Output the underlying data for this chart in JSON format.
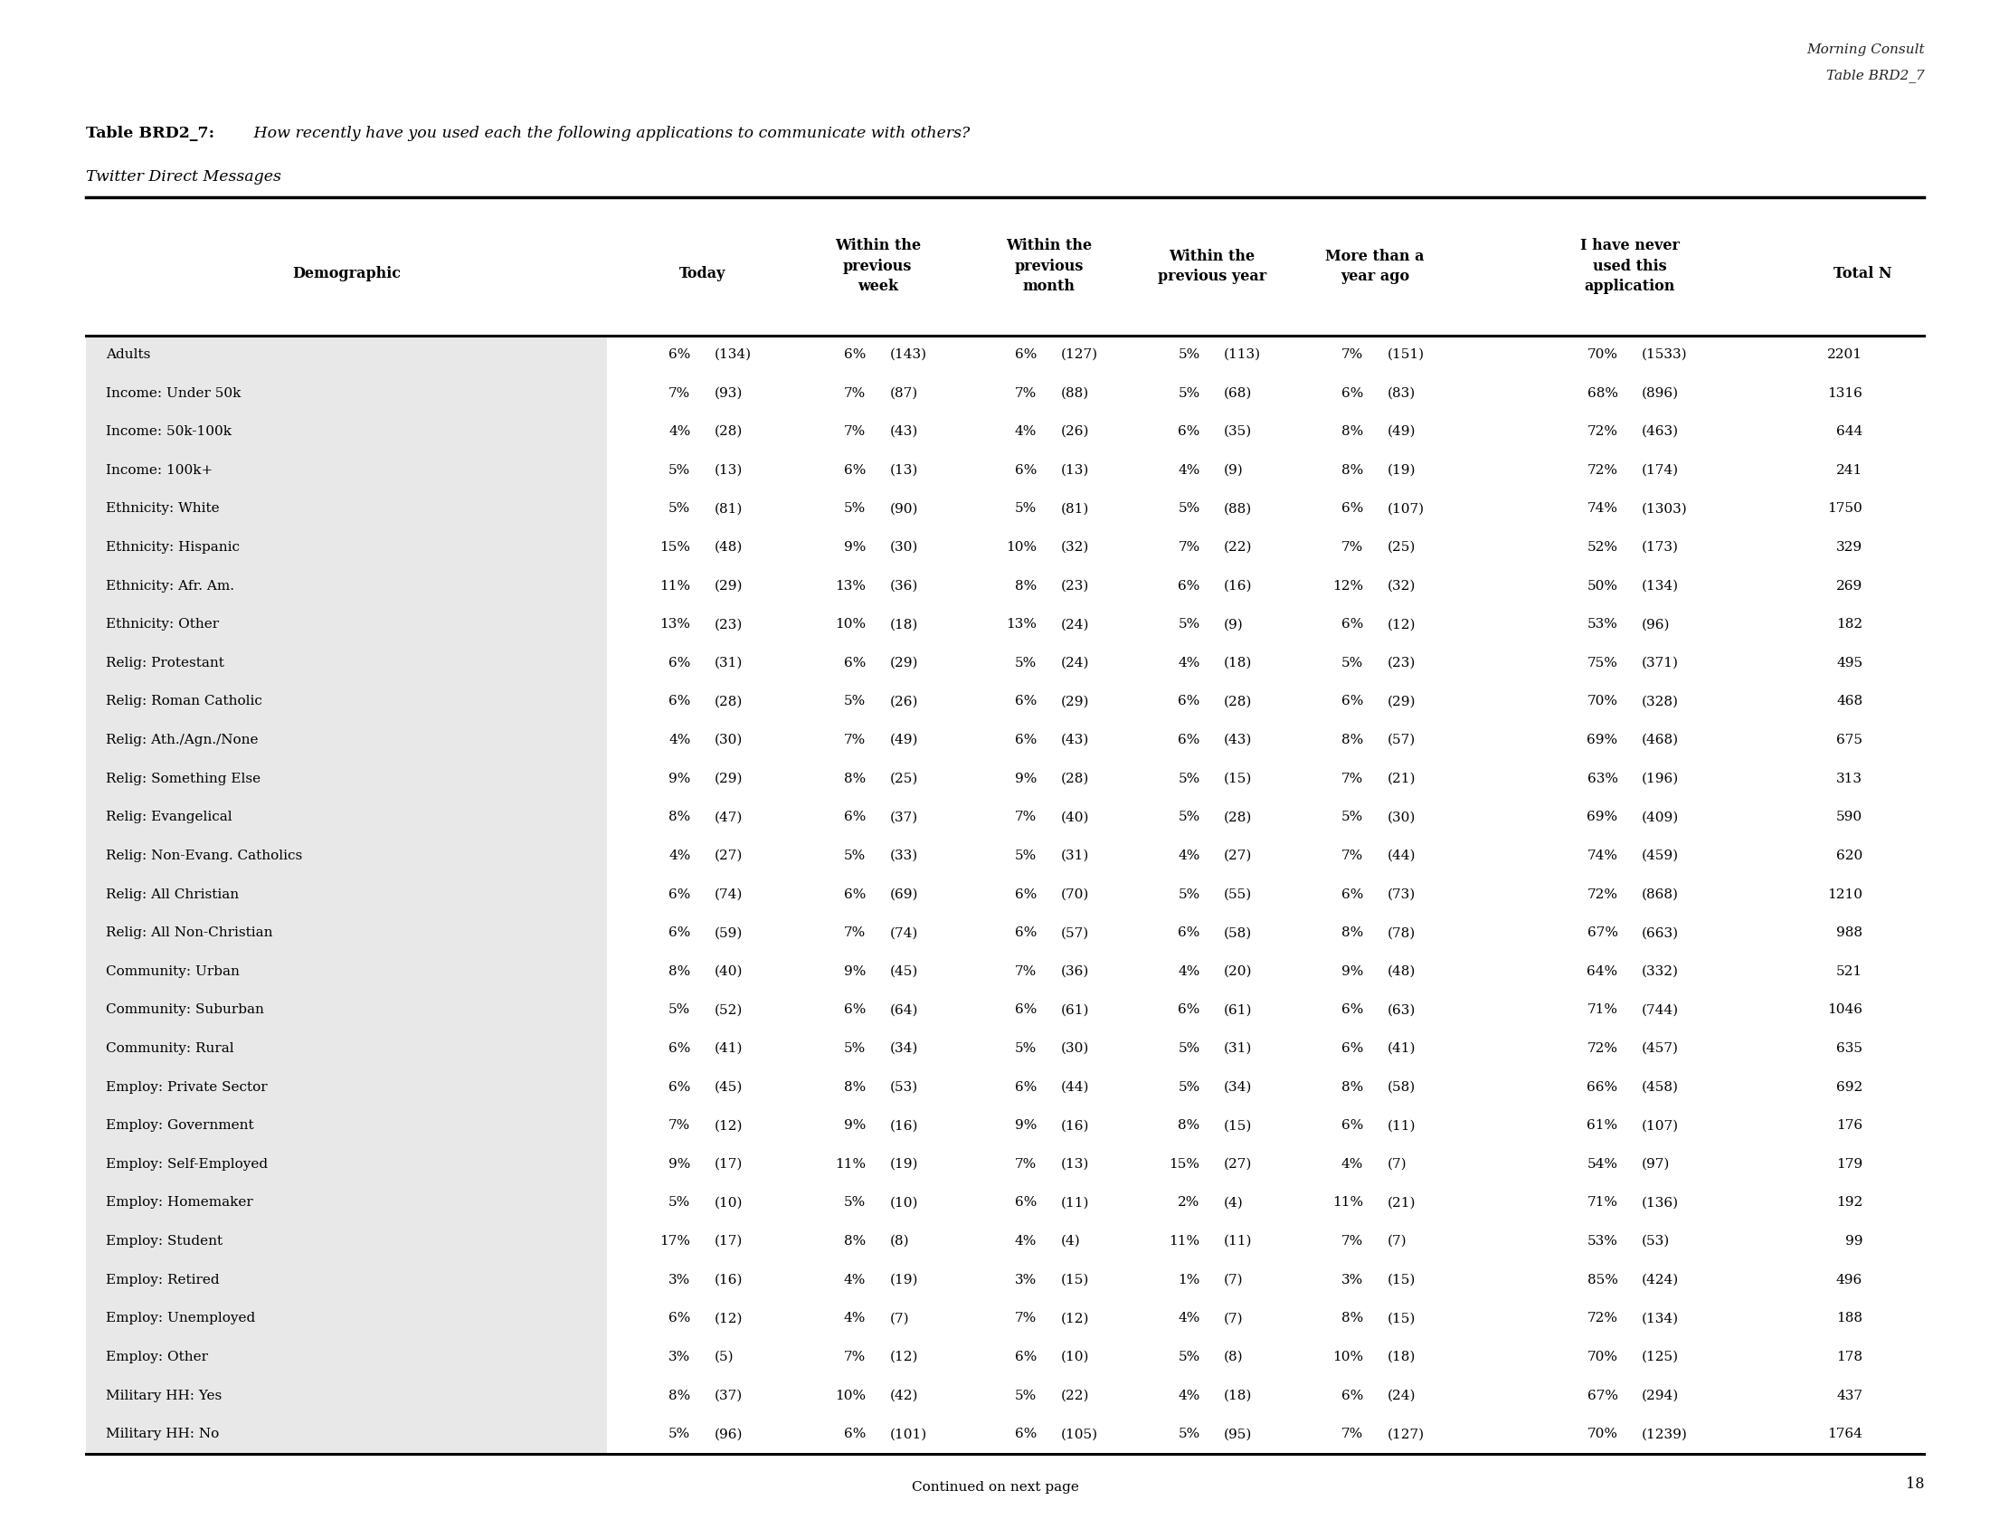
{
  "top_right_text": [
    "Morning Consult",
    "Table BRD2_7"
  ],
  "table_label_bold": "Table BRD2_7:",
  "table_label_italic": " How recently have you used each the following applications to communicate with others?",
  "table_subtitle": "Twitter Direct Messages",
  "rows": [
    [
      "Adults",
      "6%",
      "(134)",
      "6%",
      "(143)",
      "6%",
      "(127)",
      "5%",
      "(113)",
      "7%",
      "(151)",
      "70%",
      "(1533)",
      "2201"
    ],
    [
      "Income: Under 50k",
      "7%",
      "(93)",
      "7%",
      "(87)",
      "7%",
      "(88)",
      "5%",
      "(68)",
      "6%",
      "(83)",
      "68%",
      "(896)",
      "1316"
    ],
    [
      "Income: 50k-100k",
      "4%",
      "(28)",
      "7%",
      "(43)",
      "4%",
      "(26)",
      "6%",
      "(35)",
      "8%",
      "(49)",
      "72%",
      "(463)",
      "644"
    ],
    [
      "Income: 100k+",
      "5%",
      "(13)",
      "6%",
      "(13)",
      "6%",
      "(13)",
      "4%",
      "(9)",
      "8%",
      "(19)",
      "72%",
      "(174)",
      "241"
    ],
    [
      "Ethnicity: White",
      "5%",
      "(81)",
      "5%",
      "(90)",
      "5%",
      "(81)",
      "5%",
      "(88)",
      "6%",
      "(107)",
      "74%",
      "(1303)",
      "1750"
    ],
    [
      "Ethnicity: Hispanic",
      "15%",
      "(48)",
      "9%",
      "(30)",
      "10%",
      "(32)",
      "7%",
      "(22)",
      "7%",
      "(25)",
      "52%",
      "(173)",
      "329"
    ],
    [
      "Ethnicity: Afr. Am.",
      "11%",
      "(29)",
      "13%",
      "(36)",
      "8%",
      "(23)",
      "6%",
      "(16)",
      "12%",
      "(32)",
      "50%",
      "(134)",
      "269"
    ],
    [
      "Ethnicity: Other",
      "13%",
      "(23)",
      "10%",
      "(18)",
      "13%",
      "(24)",
      "5%",
      "(9)",
      "6%",
      "(12)",
      "53%",
      "(96)",
      "182"
    ],
    [
      "Relig: Protestant",
      "6%",
      "(31)",
      "6%",
      "(29)",
      "5%",
      "(24)",
      "4%",
      "(18)",
      "5%",
      "(23)",
      "75%",
      "(371)",
      "495"
    ],
    [
      "Relig: Roman Catholic",
      "6%",
      "(28)",
      "5%",
      "(26)",
      "6%",
      "(29)",
      "6%",
      "(28)",
      "6%",
      "(29)",
      "70%",
      "(328)",
      "468"
    ],
    [
      "Relig: Ath./Agn./None",
      "4%",
      "(30)",
      "7%",
      "(49)",
      "6%",
      "(43)",
      "6%",
      "(43)",
      "8%",
      "(57)",
      "69%",
      "(468)",
      "675"
    ],
    [
      "Relig: Something Else",
      "9%",
      "(29)",
      "8%",
      "(25)",
      "9%",
      "(28)",
      "5%",
      "(15)",
      "7%",
      "(21)",
      "63%",
      "(196)",
      "313"
    ],
    [
      "Relig: Evangelical",
      "8%",
      "(47)",
      "6%",
      "(37)",
      "7%",
      "(40)",
      "5%",
      "(28)",
      "5%",
      "(30)",
      "69%",
      "(409)",
      "590"
    ],
    [
      "Relig: Non-Evang. Catholics",
      "4%",
      "(27)",
      "5%",
      "(33)",
      "5%",
      "(31)",
      "4%",
      "(27)",
      "7%",
      "(44)",
      "74%",
      "(459)",
      "620"
    ],
    [
      "Relig: All Christian",
      "6%",
      "(74)",
      "6%",
      "(69)",
      "6%",
      "(70)",
      "5%",
      "(55)",
      "6%",
      "(73)",
      "72%",
      "(868)",
      "1210"
    ],
    [
      "Relig: All Non-Christian",
      "6%",
      "(59)",
      "7%",
      "(74)",
      "6%",
      "(57)",
      "6%",
      "(58)",
      "8%",
      "(78)",
      "67%",
      "(663)",
      "988"
    ],
    [
      "Community: Urban",
      "8%",
      "(40)",
      "9%",
      "(45)",
      "7%",
      "(36)",
      "4%",
      "(20)",
      "9%",
      "(48)",
      "64%",
      "(332)",
      "521"
    ],
    [
      "Community: Suburban",
      "5%",
      "(52)",
      "6%",
      "(64)",
      "6%",
      "(61)",
      "6%",
      "(61)",
      "6%",
      "(63)",
      "71%",
      "(744)",
      "1046"
    ],
    [
      "Community: Rural",
      "6%",
      "(41)",
      "5%",
      "(34)",
      "5%",
      "(30)",
      "5%",
      "(31)",
      "6%",
      "(41)",
      "72%",
      "(457)",
      "635"
    ],
    [
      "Employ: Private Sector",
      "6%",
      "(45)",
      "8%",
      "(53)",
      "6%",
      "(44)",
      "5%",
      "(34)",
      "8%",
      "(58)",
      "66%",
      "(458)",
      "692"
    ],
    [
      "Employ: Government",
      "7%",
      "(12)",
      "9%",
      "(16)",
      "9%",
      "(16)",
      "8%",
      "(15)",
      "6%",
      "(11)",
      "61%",
      "(107)",
      "176"
    ],
    [
      "Employ: Self-Employed",
      "9%",
      "(17)",
      "11%",
      "(19)",
      "7%",
      "(13)",
      "15%",
      "(27)",
      "4%",
      "(7)",
      "54%",
      "(97)",
      "179"
    ],
    [
      "Employ: Homemaker",
      "5%",
      "(10)",
      "5%",
      "(10)",
      "6%",
      "(11)",
      "2%",
      "(4)",
      "11%",
      "(21)",
      "71%",
      "(136)",
      "192"
    ],
    [
      "Employ: Student",
      "17%",
      "(17)",
      "8%",
      "(8)",
      "4%",
      "(4)",
      "11%",
      "(11)",
      "7%",
      "(7)",
      "53%",
      "(53)",
      "99"
    ],
    [
      "Employ: Retired",
      "3%",
      "(16)",
      "4%",
      "(19)",
      "3%",
      "(15)",
      "1%",
      "(7)",
      "3%",
      "(15)",
      "85%",
      "(424)",
      "496"
    ],
    [
      "Employ: Unemployed",
      "6%",
      "(12)",
      "4%",
      "(7)",
      "7%",
      "(12)",
      "4%",
      "(7)",
      "8%",
      "(15)",
      "72%",
      "(134)",
      "188"
    ],
    [
      "Employ: Other",
      "3%",
      "(5)",
      "7%",
      "(12)",
      "6%",
      "(10)",
      "5%",
      "(8)",
      "10%",
      "(18)",
      "70%",
      "(125)",
      "178"
    ],
    [
      "Military HH: Yes",
      "8%",
      "(37)",
      "10%",
      "(42)",
      "5%",
      "(22)",
      "4%",
      "(18)",
      "6%",
      "(24)",
      "67%",
      "(294)",
      "437"
    ],
    [
      "Military HH: No",
      "5%",
      "(96)",
      "6%",
      "(101)",
      "6%",
      "(105)",
      "5%",
      "(95)",
      "7%",
      "(127)",
      "70%",
      "(1239)",
      "1764"
    ]
  ],
  "footer": "Continued on next page",
  "page_number": "18",
  "bg_color": "#e8e8e8",
  "white_color": "#ffffff"
}
